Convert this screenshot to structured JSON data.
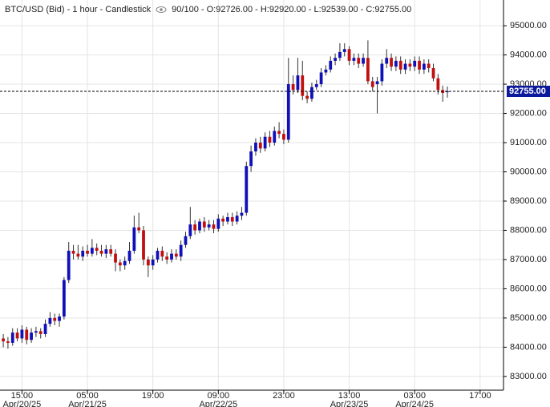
{
  "chart_data": {
    "type": "candlestick",
    "title": "BTC/USD (Bid) - 1 hour - Candlestick",
    "subtitle": "90/100 - O:92726.00 - H:92920.00 - L:92539.00 - C:92755.00",
    "up_color": "#1010b8",
    "down_color": "#c01010",
    "wick_color": "#333333",
    "grid": true,
    "x": [
      0,
      1,
      2,
      3,
      4,
      5,
      6,
      7,
      8,
      9,
      10,
      11,
      12,
      13,
      14,
      15,
      16,
      17,
      18,
      19,
      20,
      21,
      22,
      23,
      24,
      25,
      26,
      27,
      28,
      29,
      30,
      31,
      32,
      33,
      34,
      35,
      36,
      37,
      38,
      39,
      40,
      41,
      42,
      43,
      44,
      45,
      46,
      47,
      48,
      49,
      50,
      51,
      52,
      53,
      54,
      55,
      56,
      57,
      58,
      59,
      60,
      61,
      62,
      63,
      64,
      65,
      66,
      67,
      68,
      69,
      70,
      71,
      72,
      73,
      74,
      75,
      76,
      77,
      78,
      79,
      80,
      81,
      82,
      83,
      84,
      85,
      86,
      87,
      88,
      89,
      90,
      91,
      92,
      93,
      94,
      95
    ],
    "open": [
      84300,
      84200,
      84150,
      84500,
      84300,
      84600,
      84250,
      84500,
      84550,
      84450,
      84800,
      85000,
      84900,
      85050,
      86300,
      87300,
      87200,
      87100,
      87300,
      87200,
      87400,
      87300,
      87200,
      87350,
      87200,
      86900,
      86800,
      86950,
      87300,
      88100,
      88000,
      87000,
      86800,
      87000,
      87300,
      87100,
      87000,
      87200,
      87100,
      87500,
      87800,
      88200,
      88000,
      88300,
      88100,
      88200,
      88050,
      88400,
      88300,
      88450,
      88300,
      88500,
      88600,
      90200,
      90700,
      91000,
      90800,
      91200,
      91000,
      91400,
      91300,
      91100,
      93000,
      92800,
      93300,
      92600,
      92500,
      92900,
      93000,
      93400,
      93500,
      93800,
      93900,
      94100,
      94200,
      93800,
      93900,
      93700,
      93900,
      93100,
      93000,
      93100,
      93700,
      93900,
      93600,
      93800,
      93500,
      93700,
      93600,
      93800,
      93500,
      93700,
      93550,
      93200,
      92800,
      92726
    ],
    "high": [
      84450,
      84350,
      84650,
      84650,
      84750,
      84700,
      84650,
      84700,
      84650,
      84950,
      85200,
      85150,
      85150,
      86400,
      87600,
      87500,
      87500,
      87450,
      87500,
      87700,
      87550,
      87500,
      87500,
      87500,
      87350,
      87000,
      87100,
      87600,
      88500,
      88600,
      88150,
      87100,
      87150,
      87400,
      87450,
      87250,
      87350,
      87350,
      87650,
      87950,
      88800,
      88350,
      88400,
      88450,
      88350,
      88350,
      88550,
      88500,
      88600,
      88600,
      88650,
      88800,
      90350,
      90900,
      91150,
      91200,
      91350,
      91400,
      91550,
      91700,
      91450,
      93900,
      93300,
      93900,
      93800,
      92750,
      93050,
      93150,
      93550,
      93650,
      93950,
      94050,
      94400,
      94400,
      94300,
      94050,
      94050,
      94050,
      94500,
      93250,
      93250,
      93850,
      94200,
      94050,
      93950,
      93950,
      93850,
      93850,
      93950,
      93950,
      93850,
      93850,
      93700,
      93350,
      92950,
      92920
    ],
    "low": [
      84000,
      83950,
      84050,
      84200,
      84150,
      84100,
      84150,
      84350,
      84300,
      84350,
      84700,
      84750,
      84700,
      84950,
      86200,
      87000,
      87000,
      86950,
      87100,
      87100,
      87150,
      87100,
      87050,
      87100,
      86600,
      86600,
      86650,
      86850,
      87200,
      87900,
      86800,
      86400,
      86650,
      86900,
      86950,
      86850,
      86900,
      87000,
      86950,
      87400,
      87700,
      87850,
      87900,
      87950,
      88000,
      87900,
      87950,
      88150,
      88200,
      88150,
      88200,
      88350,
      88500,
      90000,
      90550,
      90650,
      90700,
      90850,
      90900,
      91150,
      90950,
      91000,
      92650,
      92700,
      92450,
      92350,
      92400,
      92800,
      92900,
      93300,
      93400,
      93650,
      93800,
      93950,
      93650,
      93650,
      93550,
      93600,
      93000,
      92750,
      92000,
      92950,
      93550,
      93450,
      93450,
      93350,
      93350,
      93450,
      93450,
      93350,
      93350,
      93400,
      93100,
      92650,
      92400,
      92539
    ],
    "close": [
      84200,
      84150,
      84500,
      84300,
      84600,
      84250,
      84500,
      84550,
      84450,
      84800,
      85000,
      84900,
      85050,
      86300,
      87300,
      87200,
      87100,
      87300,
      87200,
      87400,
      87300,
      87200,
      87350,
      87200,
      86900,
      86800,
      86950,
      87300,
      88100,
      88000,
      87000,
      86800,
      87000,
      87300,
      87100,
      87000,
      87200,
      87100,
      87500,
      87800,
      88200,
      88000,
      88300,
      88100,
      88200,
      88050,
      88400,
      88300,
      88450,
      88300,
      88500,
      88600,
      90200,
      90700,
      91000,
      90800,
      91200,
      91000,
      91400,
      91300,
      91100,
      93000,
      92800,
      93300,
      92600,
      92500,
      92900,
      93000,
      93400,
      93500,
      93800,
      93900,
      94100,
      94200,
      93800,
      93900,
      93700,
      93900,
      93100,
      92900,
      93100,
      93700,
      93900,
      93600,
      93800,
      93500,
      93700,
      93600,
      93800,
      93500,
      93700,
      93550,
      93200,
      92800,
      92700,
      92755
    ],
    "xlim": [
      -0.7,
      107
    ],
    "xticks": [
      {
        "value": 4,
        "label": "15:00"
      },
      {
        "value": 18,
        "label": "05:00"
      },
      {
        "value": 32,
        "label": "19:00"
      },
      {
        "value": 46,
        "label": "09:00"
      },
      {
        "value": 60,
        "label": "23:00"
      },
      {
        "value": 74,
        "label": "13:00"
      },
      {
        "value": 88,
        "label": "03:00"
      },
      {
        "value": 102,
        "label": "17:00"
      }
    ],
    "xtick_dates": [
      {
        "value": 4,
        "label": "Apr/20/25"
      },
      {
        "value": 18,
        "label": "Apr/21/25"
      },
      {
        "value": 46,
        "label": "Apr/22/25"
      },
      {
        "value": 74,
        "label": "Apr/23/25"
      },
      {
        "value": 88,
        "label": "Apr/24/25"
      }
    ],
    "ylim": [
      82530,
      95880
    ],
    "yticks": [
      {
        "value": 83000,
        "label": "83000.00"
      },
      {
        "value": 84000,
        "label": "84000.00"
      },
      {
        "value": 85000,
        "label": "85000.00"
      },
      {
        "value": 86000,
        "label": "86000.00"
      },
      {
        "value": 87000,
        "label": "87000.00"
      },
      {
        "value": 88000,
        "label": "88000.00"
      },
      {
        "value": 89000,
        "label": "89000.00"
      },
      {
        "value": 90000,
        "label": "90000.00"
      },
      {
        "value": 91000,
        "label": "91000.00"
      },
      {
        "value": 92000,
        "label": "92000.00"
      },
      {
        "value": 93000,
        "label": "93000.00"
      },
      {
        "value": 94000,
        "label": "94000.00"
      },
      {
        "value": 95000,
        "label": "95000.00"
      }
    ],
    "current_price": {
      "value": 92755,
      "label": "92755.00",
      "color": "#0b1a9c"
    }
  }
}
